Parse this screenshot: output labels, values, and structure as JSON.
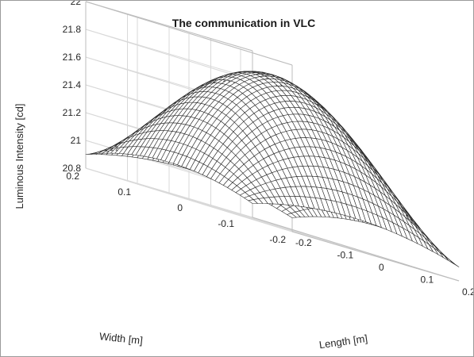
{
  "chart_data": {
    "type": "surface",
    "title": "The communication in VLC",
    "xlabel": "Length [m]",
    "ylabel": "Width [m]",
    "zlabel": "Luminous Intensity [cd]",
    "xlim": [
      -0.2,
      0.2
    ],
    "ylim": [
      -0.2,
      0.2
    ],
    "zlim": [
      20.8,
      22
    ],
    "x_ticks": [
      "-0.2",
      "-0.1",
      "0",
      "0.1",
      "0.2"
    ],
    "y_ticks": [
      "-0.2",
      "-0.1",
      "0",
      "0.1",
      "0.2"
    ],
    "z_ticks": [
      "20.8",
      "21",
      "21.2",
      "21.4",
      "21.6",
      "21.8",
      "22"
    ],
    "grid": true,
    "peak": {
      "x": 0,
      "y": 0,
      "z": 21.88
    },
    "edge_midpoint_z": 21.02,
    "corner_z": 20.9,
    "mesh_resolution": 41
  }
}
